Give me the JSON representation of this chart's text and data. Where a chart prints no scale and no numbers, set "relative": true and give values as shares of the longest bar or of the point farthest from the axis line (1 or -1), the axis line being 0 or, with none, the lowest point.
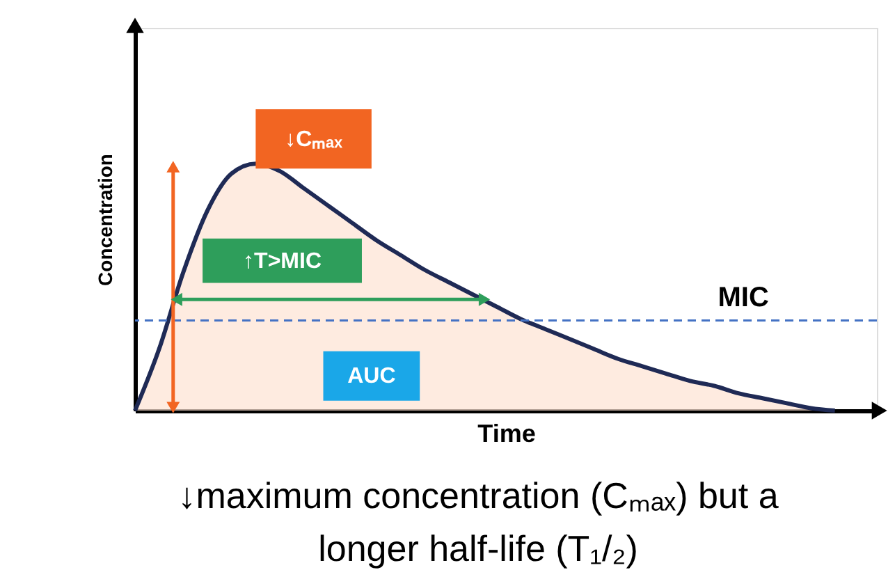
{
  "chart_data": {
    "type": "area",
    "relative": true,
    "xlabel": "Time",
    "ylabel": "Concentration",
    "tick_labels": false,
    "grid": false,
    "categories": [
      null,
      null,
      null,
      null,
      null,
      null,
      null,
      null,
      null,
      null,
      null,
      null,
      null,
      null,
      null,
      null,
      null,
      null,
      null,
      null,
      null,
      null,
      null,
      null,
      null,
      null,
      null,
      null,
      null,
      null
    ],
    "series": [
      {
        "color": "#fde3d3",
        "values": [
          0,
          0.25,
          0.56,
          0.81,
          0.96,
          1,
          0.97,
          0.9,
          0.83,
          0.76,
          0.69,
          0.63,
          0.57,
          0.52,
          0.47,
          0.42,
          0.37,
          0.33,
          0.29,
          0.25,
          0.21,
          0.18,
          0.15,
          0.12,
          0.1,
          0.07,
          0.05,
          0.03,
          0.01,
          0
        ]
      }
    ],
    "ref_lines": [
      {
        "axis": "y",
        "value": 0.365,
        "label": "MIC",
        "color": "#4472c4",
        "line_style": "dashed"
      }
    ],
    "annotations": [
      "↓Cₘₐₓ",
      "↑T>MIC",
      "AUC",
      "↓maximum concentration (Cₘₐₓ) but a\nlonger half-life (T₁/₂)"
    ]
  }
}
